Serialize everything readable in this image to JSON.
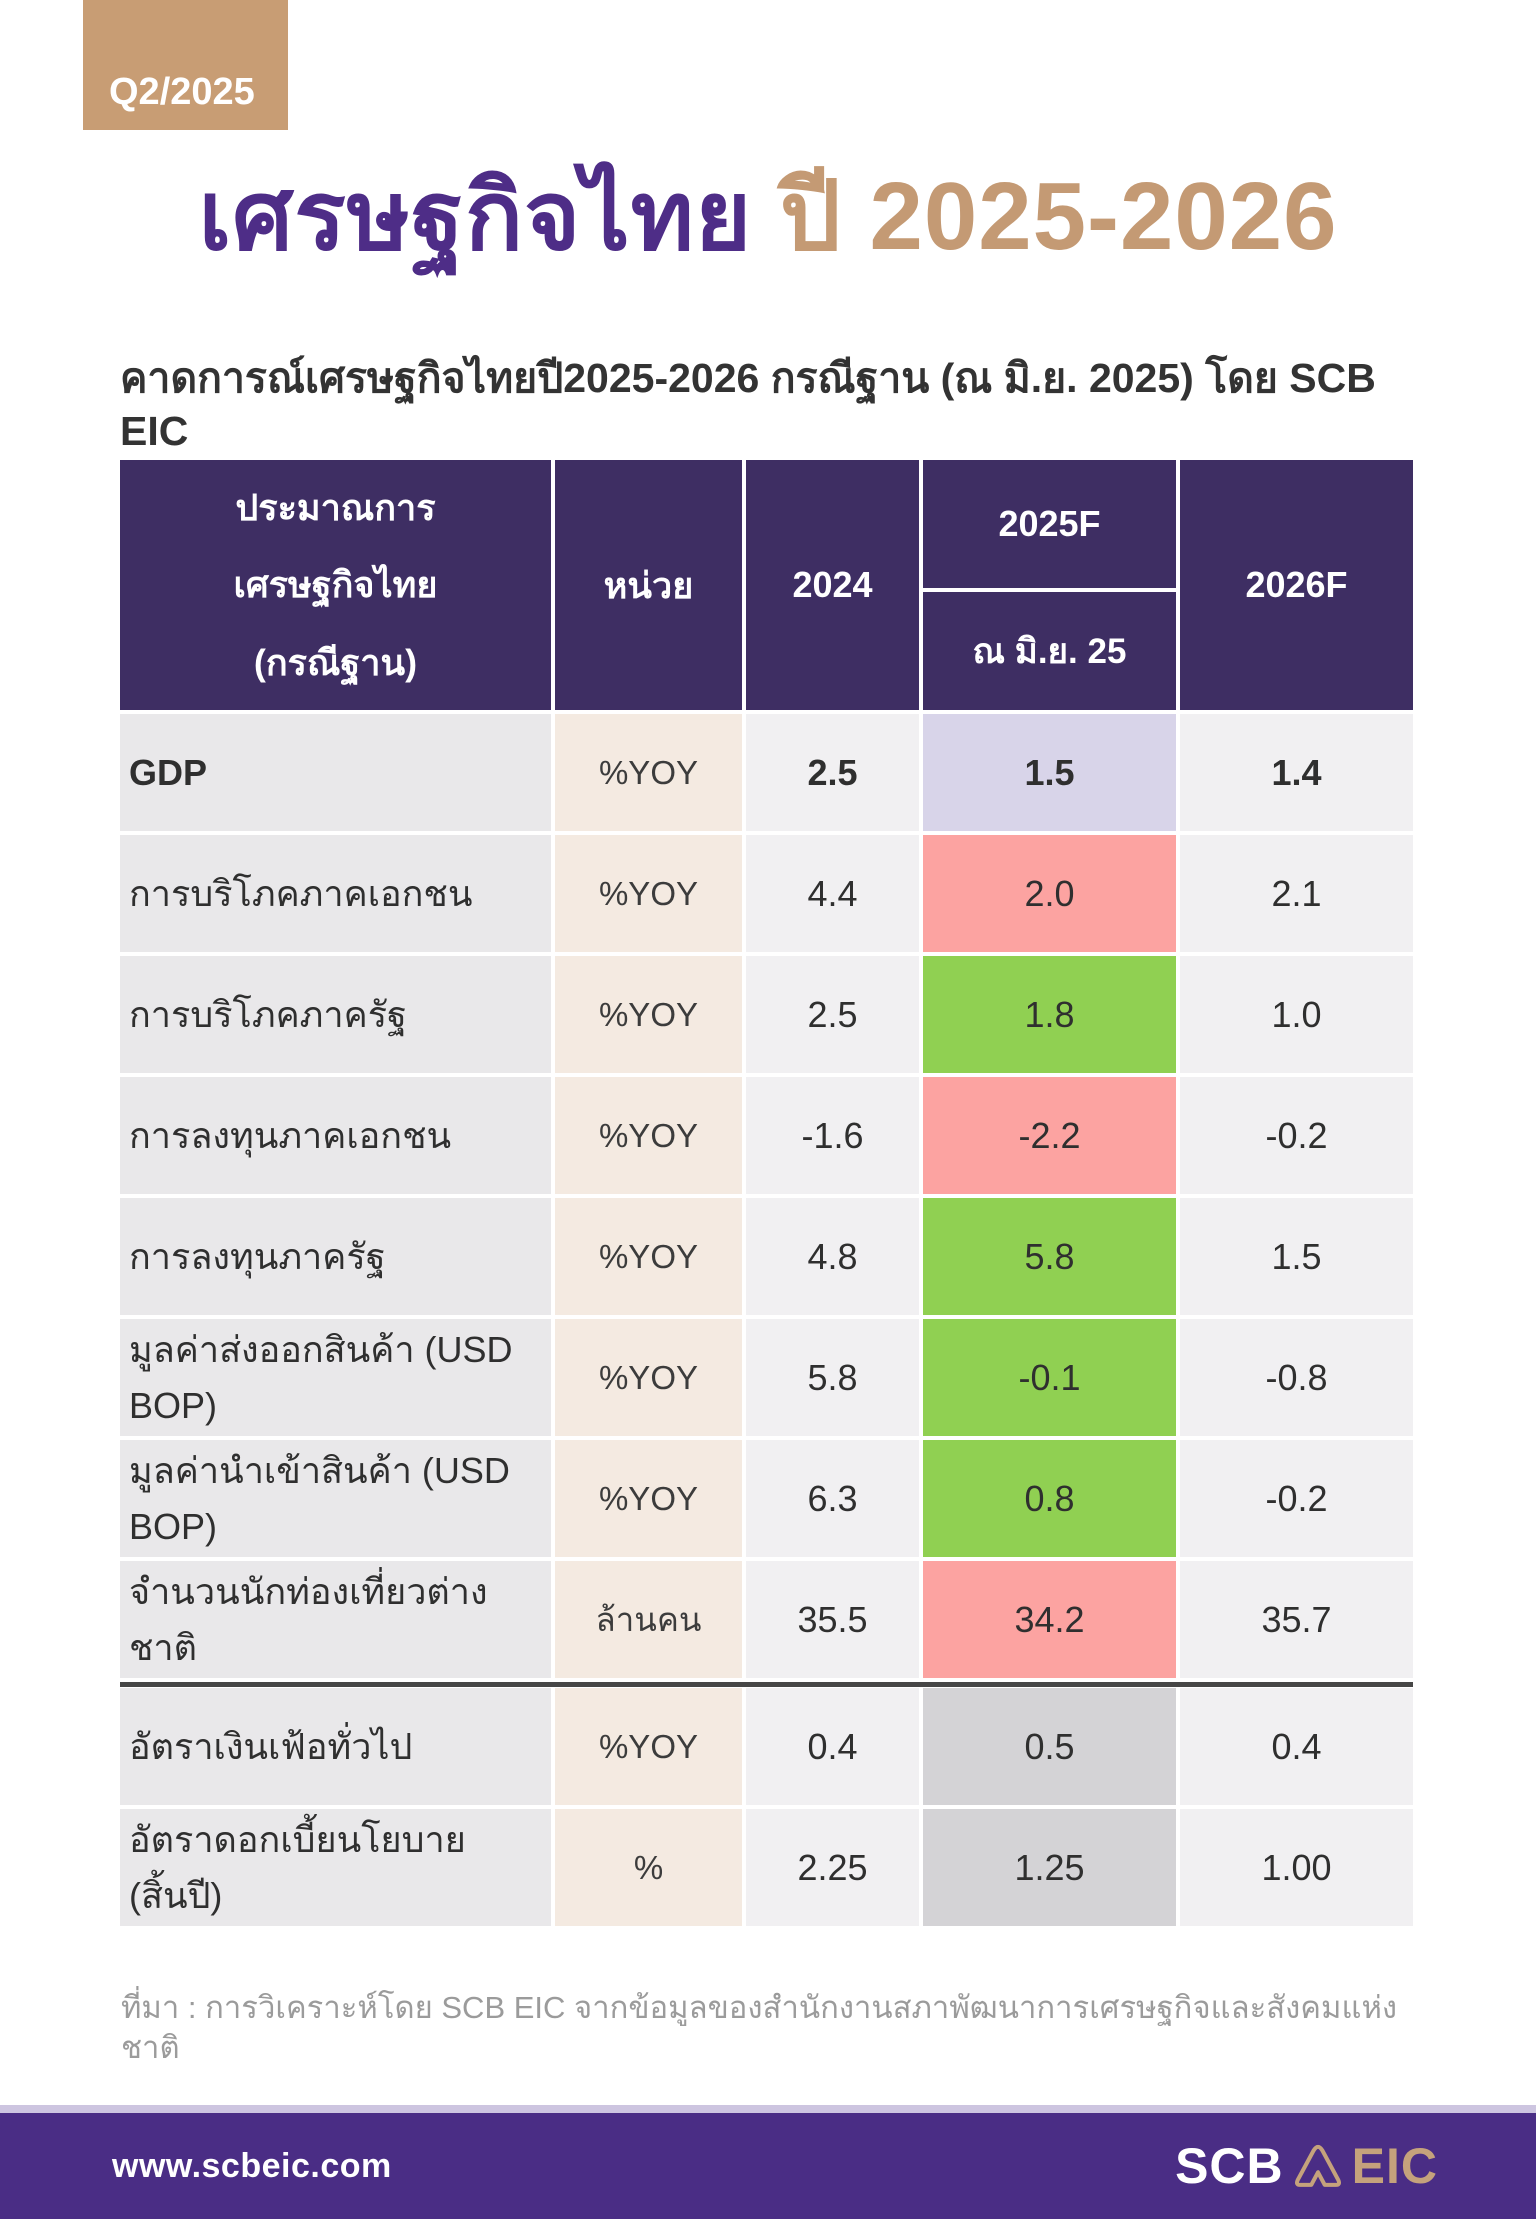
{
  "badge": {
    "label": "Q2/2025"
  },
  "title": {
    "main": "เศรษฐกิจไทย",
    "accent": "ปี 2025-2026"
  },
  "subtitle": "คาดการณ์เศรษฐกิจไทยปี2025-2026 กรณีฐาน (ณ มิ.ย. 2025) โดย SCB EIC",
  "table": {
    "header": {
      "indicator_line1": "ประมาณการ",
      "indicator_line2": "เศรษฐกิจไทย",
      "indicator_line3": "(กรณีฐาน)",
      "unit": "หน่วย",
      "col_2024": "2024",
      "col_2025f": "2025F",
      "col_2025f_sub": "ณ มิ.ย. 25",
      "col_2026f": "2026F"
    },
    "highlight_colors": {
      "lavender": "#d8d4e9",
      "pink": "#fca3a1",
      "green": "#90d052",
      "gray": "#d4d3d6"
    }
  },
  "chart_data": {
    "type": "table",
    "title": "เศรษฐกิจไทย ปี 2025-2026",
    "subtitle": "คาดการณ์เศรษฐกิจไทยปี2025-2026 กรณีฐาน (ณ มิ.ย. 2025) โดย SCB EIC",
    "columns": [
      "ประมาณการเศรษฐกิจไทย (กรณีฐาน)",
      "หน่วย",
      "2024",
      "2025F ณ มิ.ย. 25",
      "2026F"
    ],
    "rows": [
      {
        "label": "GDP",
        "unit": "%YOY",
        "v2024": "2.5",
        "v2025f": "1.5",
        "v2026f": "1.4",
        "highlight": "lavender",
        "bold": true
      },
      {
        "label": "การบริโภคภาคเอกชน",
        "unit": "%YOY",
        "v2024": "4.4",
        "v2025f": "2.0",
        "v2026f": "2.1",
        "highlight": "pink"
      },
      {
        "label": "การบริโภคภาครัฐ",
        "unit": "%YOY",
        "v2024": "2.5",
        "v2025f": "1.8",
        "v2026f": "1.0",
        "highlight": "green"
      },
      {
        "label": "การลงทุนภาคเอกชน",
        "unit": "%YOY",
        "v2024": "-1.6",
        "v2025f": "-2.2",
        "v2026f": "-0.2",
        "highlight": "pink"
      },
      {
        "label": "การลงทุนภาครัฐ",
        "unit": "%YOY",
        "v2024": "4.8",
        "v2025f": "5.8",
        "v2026f": "1.5",
        "highlight": "green"
      },
      {
        "label": "มูลค่าส่งออกสินค้า (USD BOP)",
        "unit": "%YOY",
        "v2024": "5.8",
        "v2025f": "-0.1",
        "v2026f": "-0.8",
        "highlight": "green"
      },
      {
        "label": "มูลค่านำเข้าสินค้า (USD BOP)",
        "unit": "%YOY",
        "v2024": "6.3",
        "v2025f": "0.8",
        "v2026f": "-0.2",
        "highlight": "green"
      },
      {
        "label": "จำนวนนักท่องเที่ยวต่างชาติ",
        "unit": "ล้านคน",
        "v2024": "35.5",
        "v2025f": "34.2",
        "v2026f": "35.7",
        "highlight": "pink"
      },
      {
        "label": "อัตราเงินเฟ้อทั่วไป",
        "unit": "%YOY",
        "v2024": "0.4",
        "v2025f": "0.5",
        "v2026f": "0.4",
        "highlight": "gray",
        "separator_above": true
      },
      {
        "label": "อัตราดอกเบี้ยนโยบาย (สิ้นปี)",
        "unit": "%",
        "v2024": "2.25",
        "v2025f": "1.25",
        "v2026f": "1.00",
        "highlight": "gray"
      }
    ]
  },
  "source": "ที่มา : การวิเคราะห์โดย SCB EIC จากข้อมูลของสำนักงานสภาพัฒนาการเศรษฐกิจและสังคมแห่งชาติ",
  "footer": {
    "url": "www.scbeic.com",
    "logo_scb": "SCB",
    "logo_eic": "EIC"
  },
  "colors": {
    "accent_tan": "#c49a74",
    "title_purple": "#4e2d87",
    "header_purple": "#3e2e63",
    "footer_purple": "#4a2d85",
    "dark_separator": "#464646"
  }
}
